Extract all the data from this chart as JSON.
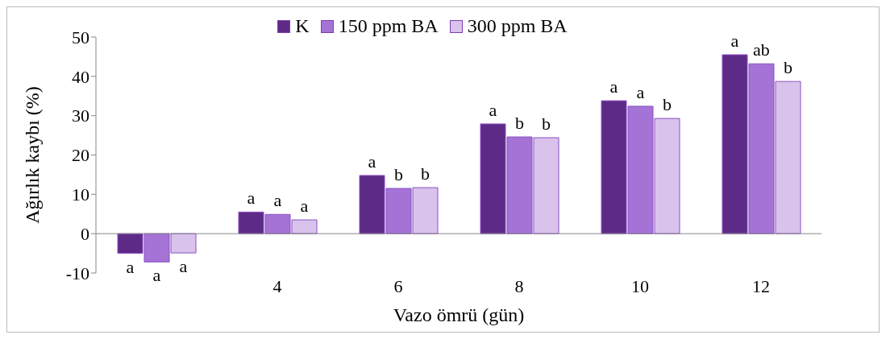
{
  "chart_data": {
    "type": "bar",
    "xlabel": "Vazo ömrü (gün)",
    "ylabel": "Ağırlık kaybı (%)",
    "categories": [
      null,
      "4",
      "6",
      "8",
      "10",
      "12"
    ],
    "series": [
      {
        "name": "K",
        "color": "#5e2a88",
        "values": [
          -5,
          5.5,
          14.8,
          27.9,
          33.8,
          45.5
        ],
        "value_labels": [
          "a",
          "a",
          "a",
          "a",
          "a",
          "a"
        ]
      },
      {
        "name": "150 ppm BA",
        "color": "#a572d6",
        "values": [
          -7.2,
          4.9,
          11.5,
          24.6,
          32.4,
          43.2
        ],
        "value_labels": [
          "a",
          "a",
          "b",
          "b",
          "a",
          "ab"
        ]
      },
      {
        "name": "300 ppm BA",
        "color": "#d9c3ec",
        "values": [
          -4.9,
          3.5,
          11.7,
          24.4,
          29.3,
          38.7
        ],
        "value_labels": [
          "a",
          "a",
          "b",
          "b",
          "b",
          "b"
        ]
      }
    ],
    "ylim": [
      -10,
      50
    ],
    "yticks": [
      -10,
      0,
      10,
      20,
      30,
      40,
      50
    ],
    "grid": false,
    "legend": "top"
  }
}
